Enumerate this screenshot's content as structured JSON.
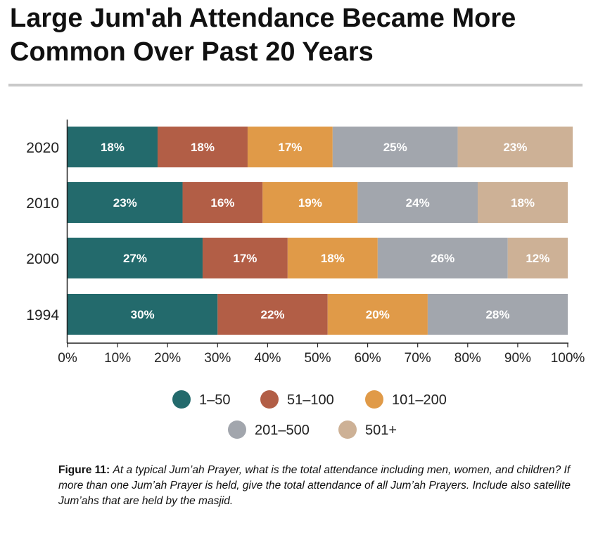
{
  "title": {
    "line1": "Large Jum'ah Attendance Became More",
    "line2": "Common Over Past 20 Years"
  },
  "colors": {
    "1-50": "#236a6c",
    "51-100": "#b25e46",
    "101-200": "#e09a48",
    "201-500": "#a2a6ad",
    "501+": "#cdb196",
    "rule": "#c9c9c9"
  },
  "chart_data": {
    "type": "bar",
    "orientation": "horizontal",
    "stacked": true,
    "categories": [
      "2020",
      "2010",
      "2000",
      "1994"
    ],
    "series": [
      {
        "name": "1–50",
        "color": "#236a6c",
        "values": [
          18,
          23,
          27,
          30
        ],
        "labels": [
          "18%",
          "23%",
          "27%",
          "30%"
        ]
      },
      {
        "name": "51–100",
        "color": "#b25e46",
        "values": [
          18,
          16,
          17,
          22
        ],
        "labels": [
          "18%",
          "16%",
          "17%",
          "22%"
        ]
      },
      {
        "name": "101–200",
        "color": "#e09a48",
        "values": [
          17,
          19,
          18,
          20
        ],
        "labels": [
          "17%",
          "19%",
          "18%",
          "20%"
        ]
      },
      {
        "name": "201–500",
        "color": "#a2a6ad",
        "values": [
          25,
          24,
          26,
          28
        ],
        "labels": [
          "25%",
          "24%",
          "26%",
          "28%"
        ]
      },
      {
        "name": "501+",
        "color": "#cdb196",
        "values": [
          23,
          18,
          12,
          0
        ],
        "labels": [
          "23%",
          "18%",
          "12%",
          ""
        ]
      }
    ],
    "xlim": [
      0,
      100
    ],
    "xticks": [
      0,
      10,
      20,
      30,
      40,
      50,
      60,
      70,
      80,
      90,
      100
    ],
    "xtick_labels": [
      "0%",
      "10%",
      "20%",
      "30%",
      "40%",
      "50%",
      "60%",
      "70%",
      "80%",
      "90%",
      "100%"
    ],
    "legend": {
      "position": "bottom",
      "labels": [
        "1–50",
        "51–100",
        "101–200",
        "201–500",
        "501+"
      ]
    },
    "grid": false
  },
  "caption": {
    "label": "Figure 11:",
    "text": "At a typical Jum’ah Prayer, what is the total attendance including men, women, and children? If more than one Jum’ah Prayer is held, give the total attendance of all Jum’ah Prayers. Include also satellite Jum’ahs that are held by the masjid."
  }
}
